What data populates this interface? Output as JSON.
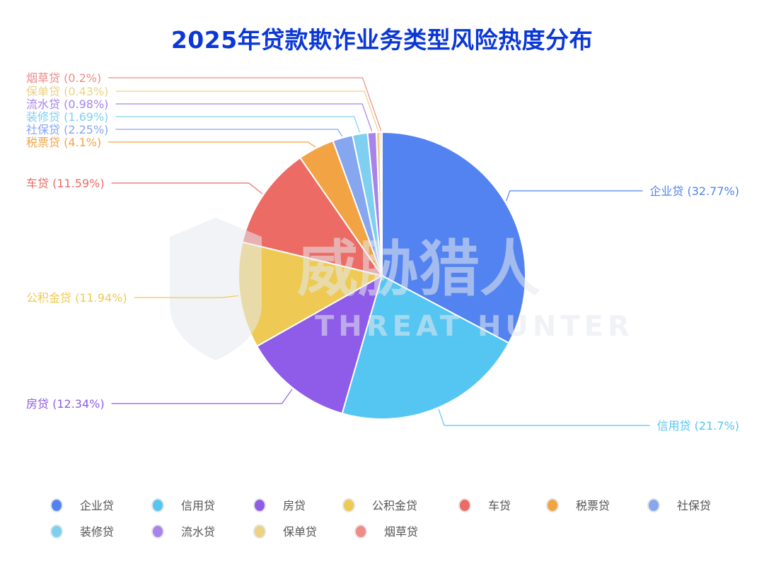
{
  "chart_data": {
    "type": "pie",
    "title": "2025年贷款欺诈业务类型风险热度分布",
    "legend_position": "bottom",
    "slices": [
      {
        "name": "企业贷",
        "value": 32.77,
        "label": "企业贷 (32.77%)",
        "color": "#5283f0"
      },
      {
        "name": "信用贷",
        "value": 21.7,
        "label": "信用贷 (21.7%)",
        "color": "#55c6f2"
      },
      {
        "name": "房贷",
        "value": 12.34,
        "label": "房贷 (12.34%)",
        "color": "#8e5ce8"
      },
      {
        "name": "公积金贷",
        "value": 11.94,
        "label": "公积金贷 (11.94%)",
        "color": "#eeca54"
      },
      {
        "name": "车贷",
        "value": 11.59,
        "label": "车贷 (11.59%)",
        "color": "#ec6b65"
      },
      {
        "name": "税票贷",
        "value": 4.1,
        "label": "税票贷 (4.1%)",
        "color": "#f2a445"
      },
      {
        "name": "社保贷",
        "value": 2.25,
        "label": "社保贷 (2.25%)",
        "color": "#86a6f0"
      },
      {
        "name": "装修贷",
        "value": 1.69,
        "label": "装修贷 (1.69%)",
        "color": "#7fd0f0"
      },
      {
        "name": "流水贷",
        "value": 0.98,
        "label": "流水贷 (0.98%)",
        "color": "#a783ec"
      },
      {
        "name": "保单贷",
        "value": 0.43,
        "label": "保单贷 (0.43%)",
        "color": "#ecd282"
      },
      {
        "name": "烟草贷",
        "value": 0.2,
        "label": "烟草贷 (0.2%)",
        "color": "#ee8c88"
      }
    ]
  },
  "watermark": {
    "cn": "威胁猎人",
    "en": "THREAT HUNTER"
  }
}
